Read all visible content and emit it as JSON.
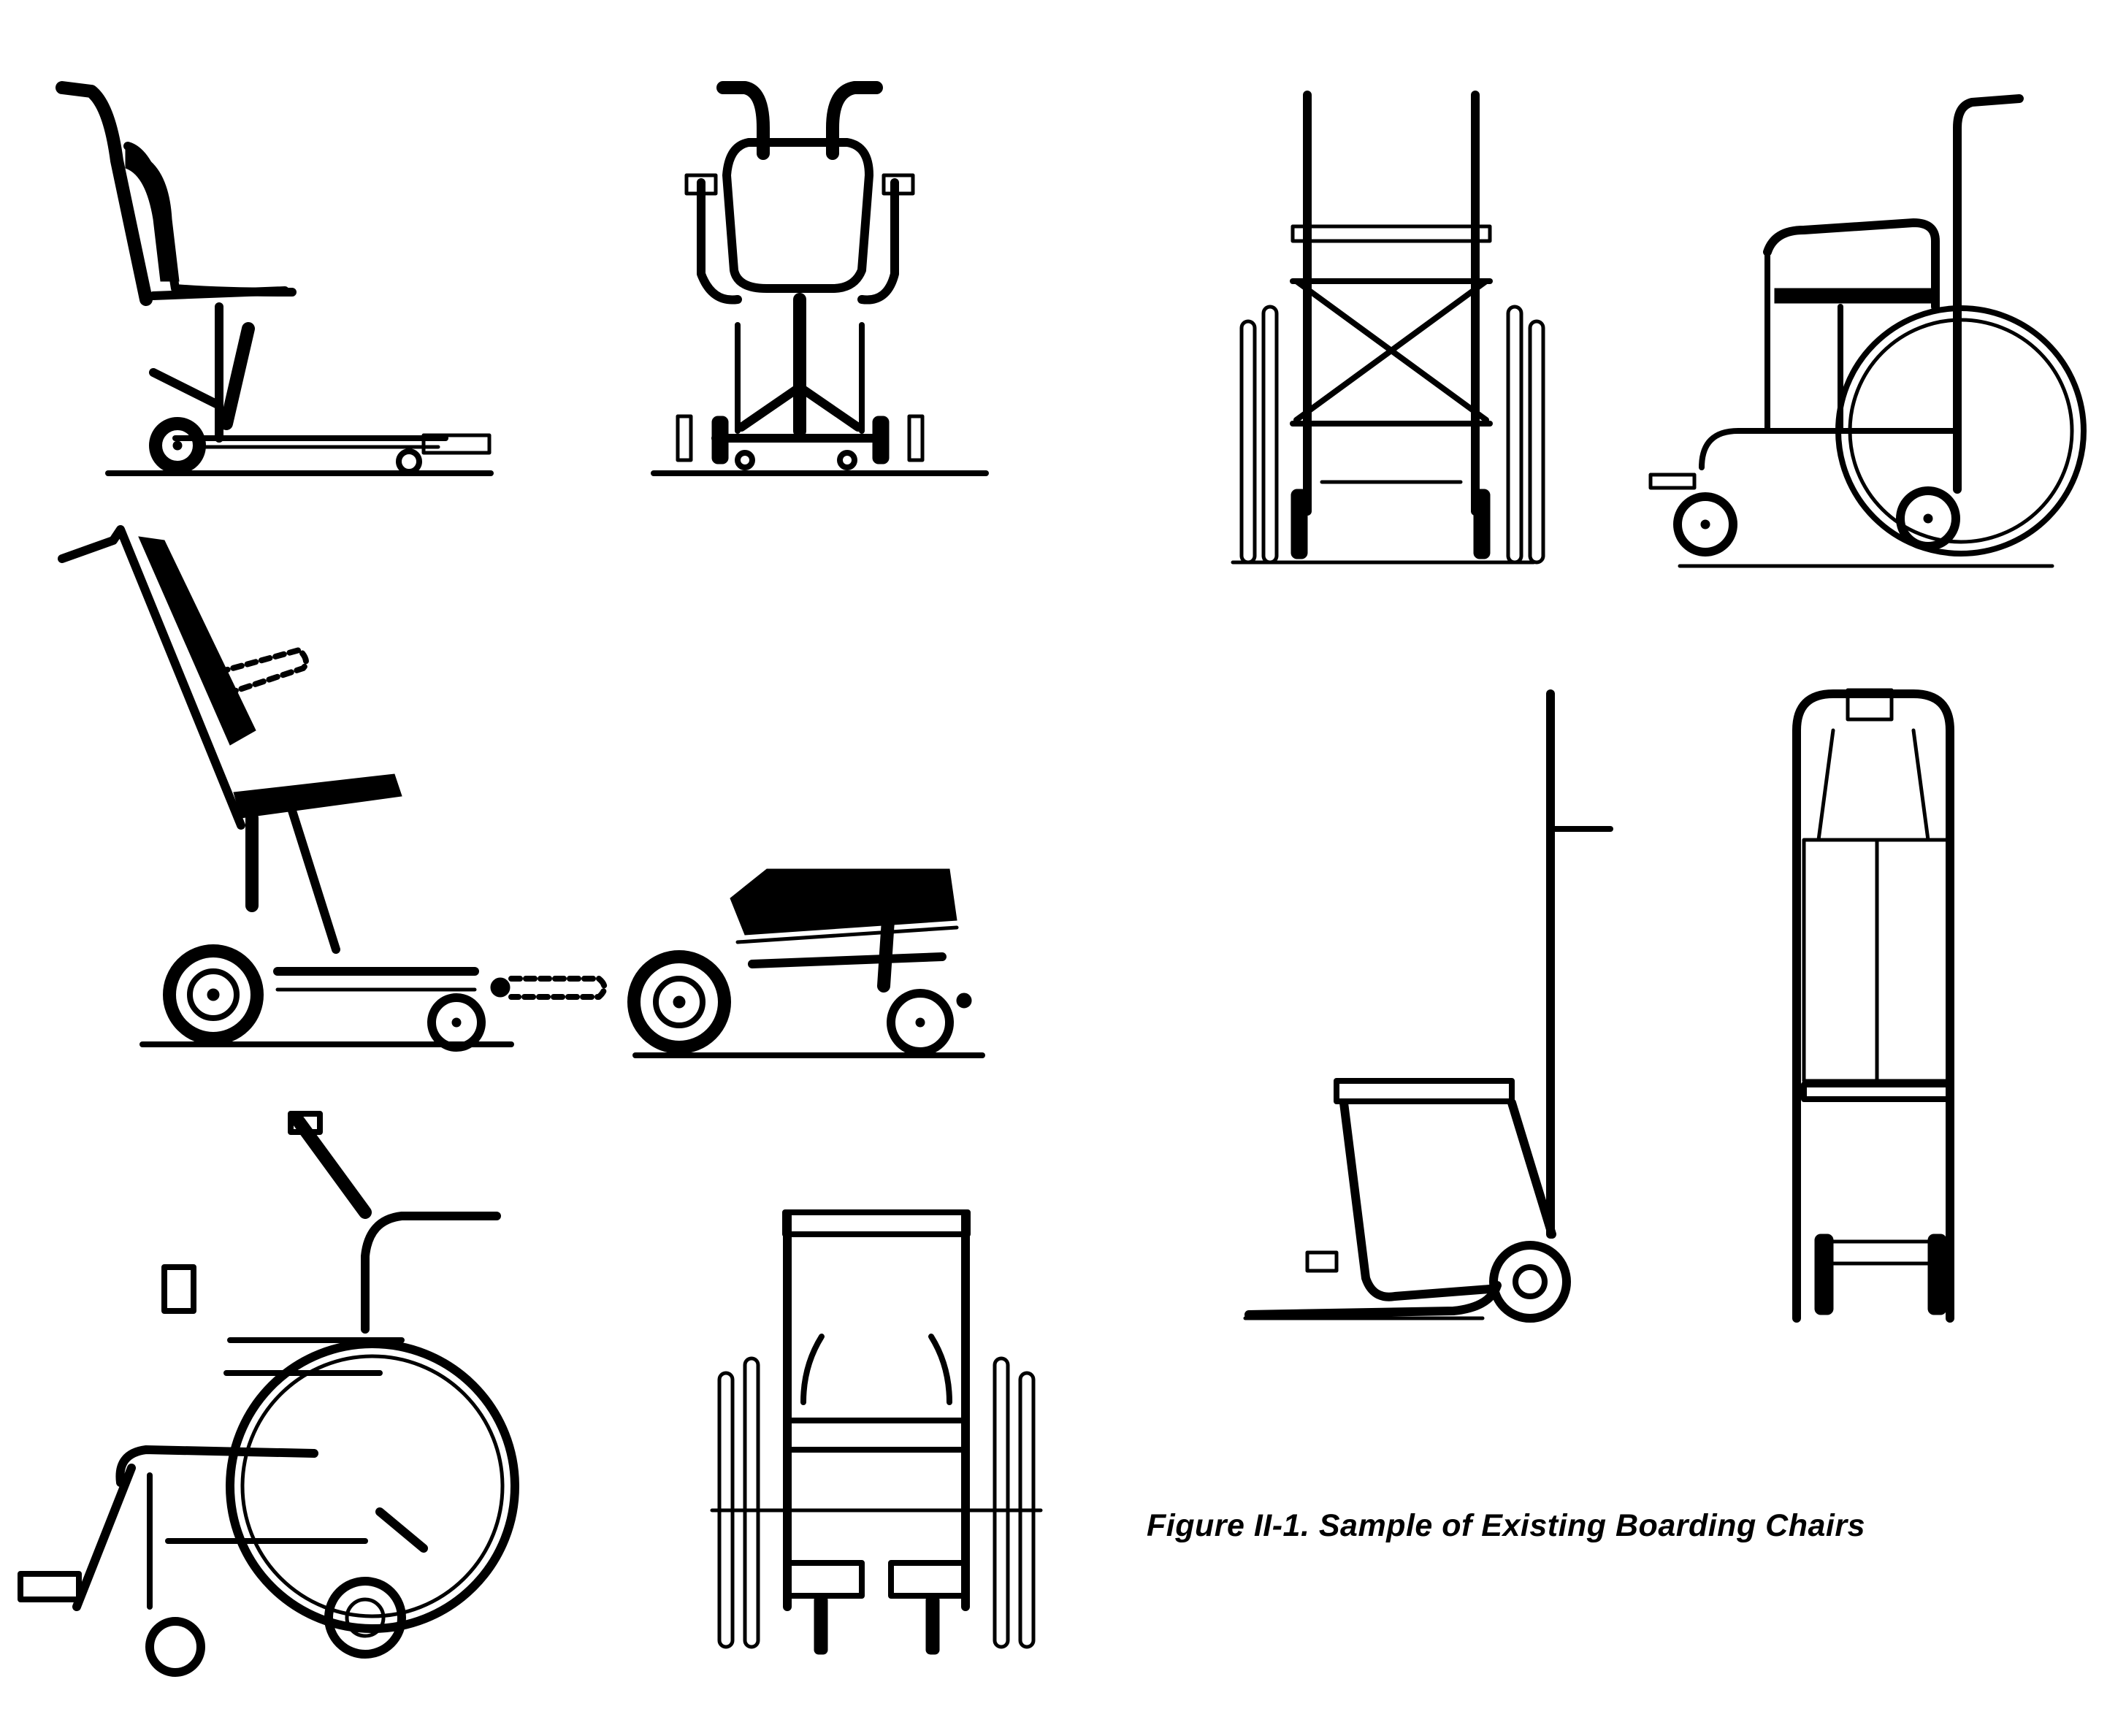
{
  "figure": {
    "caption": "Figure II-1. Sample of Existing Boarding Chairs",
    "drawings": [
      {
        "id": "shell-chair-side",
        "icon": "boarding-chair-shell-side-icon"
      },
      {
        "id": "shell-chair-front",
        "icon": "boarding-chair-shell-front-icon"
      },
      {
        "id": "folding-chair-front",
        "icon": "folding-wheelchair-front-icon"
      },
      {
        "id": "folding-chair-side",
        "icon": "folding-wheelchair-side-icon"
      },
      {
        "id": "reclining-chair-side",
        "icon": "reclining-boarding-chair-side-icon"
      },
      {
        "id": "reclining-chair-folded",
        "icon": "reclining-boarding-chair-folded-icon"
      },
      {
        "id": "narrow-chair-side",
        "icon": "narrow-boarding-chair-side-icon"
      },
      {
        "id": "narrow-chair-front",
        "icon": "narrow-boarding-chair-front-icon"
      },
      {
        "id": "dolly-chair-side",
        "icon": "dolly-boarding-chair-side-icon"
      },
      {
        "id": "dolly-chair-front",
        "icon": "dolly-boarding-chair-front-icon"
      },
      {
        "id": "sport-chair-side",
        "icon": "sport-wheelchair-side-icon"
      },
      {
        "id": "sport-chair-front",
        "icon": "sport-wheelchair-front-icon"
      }
    ]
  }
}
